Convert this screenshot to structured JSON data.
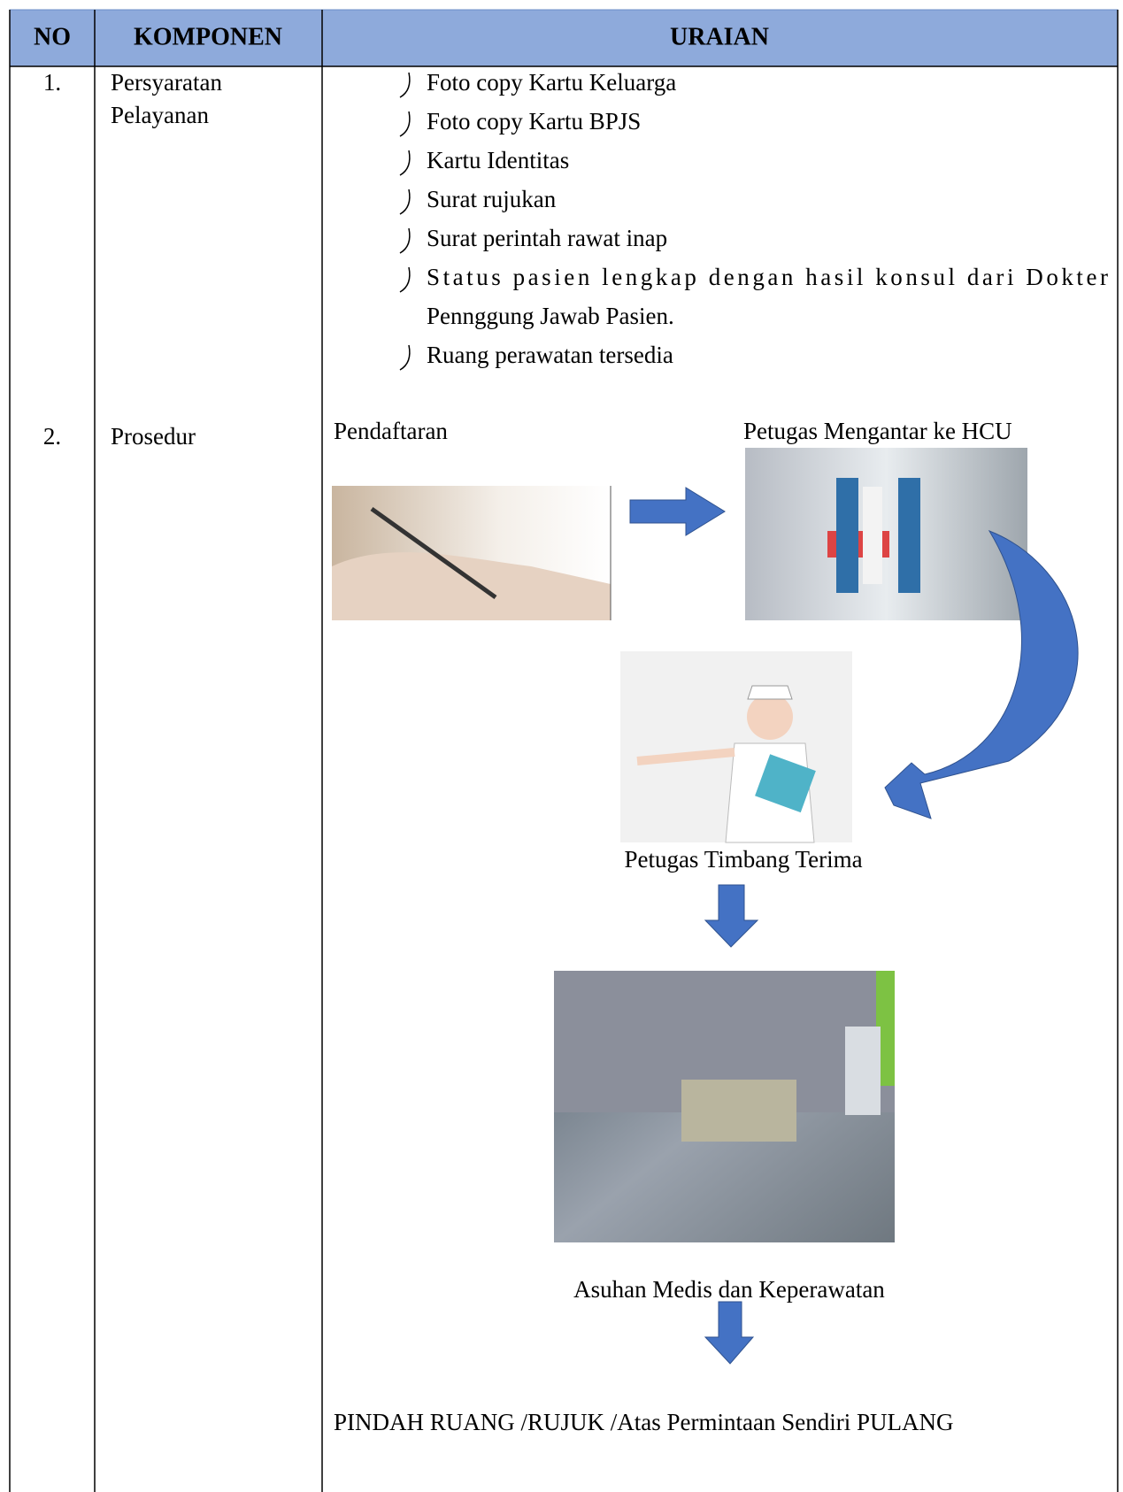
{
  "table": {
    "headers": [
      "NO",
      "KOMPONEN",
      "URAIAN"
    ],
    "rows": [
      {
        "no": "1.",
        "component": [
          "Persyaratan",
          "Pelayanan"
        ],
        "items": [
          [
            "Foto copy Kartu Keluarga"
          ],
          [
            "Foto copy Kartu BPJS"
          ],
          [
            "Kartu Identitas"
          ],
          [
            "Surat rujukan"
          ],
          [
            "Surat perintah rawat inap"
          ],
          [
            "Status pasien lengkap dengan hasil konsul dari Dokter",
            "Pennggung Jawab Pasien."
          ],
          [
            "Ruang perawatan tersedia"
          ]
        ]
      },
      {
        "no": "2.",
        "component": "Prosedur",
        "flow": [
          "Pendaftaran",
          "Petugas Mengantar ke HCU",
          "Petugas Timbang Terima",
          "Asuhan Medis dan Keperawatan",
          "PINDAH RUANG /RUJUK /Atas Permintaan Sendiri PULANG"
        ]
      }
    ]
  }
}
